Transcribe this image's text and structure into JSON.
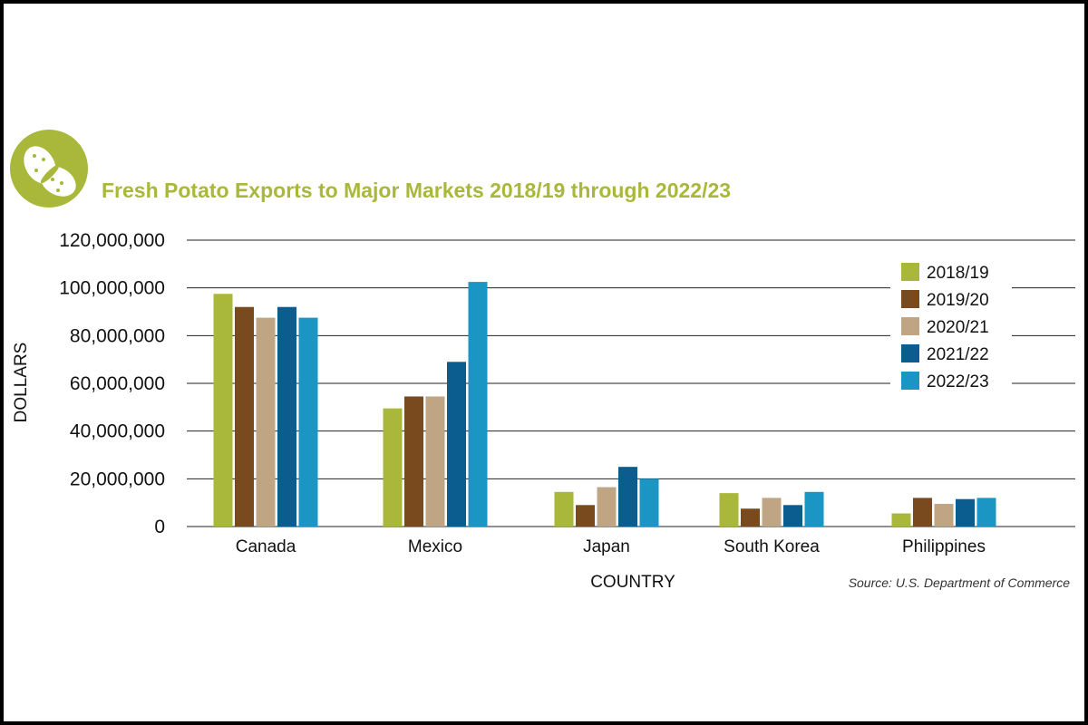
{
  "chart_data": {
    "type": "bar",
    "title": "Fresh Potato Exports to Major Markets 2018/19 through 2022/23",
    "xlabel": "COUNTRY",
    "ylabel": "DOLLARS",
    "categories": [
      "Canada",
      "Mexico",
      "Japan",
      "South Korea",
      "Philippines"
    ],
    "series": [
      {
        "name": "2018/19",
        "color": "#a9b83a",
        "values": [
          97500000,
          49500000,
          14500000,
          14000000,
          5500000
        ]
      },
      {
        "name": "2019/20",
        "color": "#7a4a1f",
        "values": [
          92000000,
          54500000,
          9000000,
          7500000,
          12000000
        ]
      },
      {
        "name": "2020/21",
        "color": "#bfa583",
        "values": [
          87500000,
          54500000,
          16500000,
          12000000,
          9500000
        ]
      },
      {
        "name": "2021/22",
        "color": "#0b5c8f",
        "values": [
          92000000,
          69000000,
          25000000,
          9000000,
          11500000
        ]
      },
      {
        "name": "2022/23",
        "color": "#1a95c4",
        "values": [
          87500000,
          102500000,
          20000000,
          14500000,
          12000000
        ]
      }
    ],
    "ylim": [
      0,
      120000000
    ],
    "yticks": [
      "0",
      "20,000,000",
      "40,000,000",
      "60,000,000",
      "80,000,000",
      "100,000,000",
      "120,000,000"
    ],
    "grid": true,
    "legend": "top-right",
    "source": "Source: U.S. Department of Commerce",
    "title_color": "#a9b83a",
    "icon": "potato-icon"
  }
}
